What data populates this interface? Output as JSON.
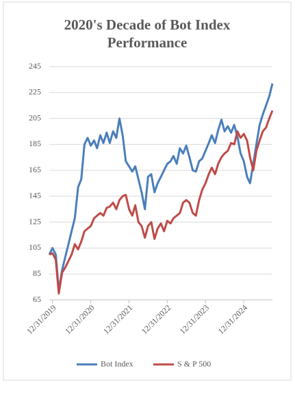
{
  "chart_data": {
    "type": "line",
    "title": "2020's Decade of Bot Index Performance",
    "x": [
      "2019-12",
      "2020-01",
      "2020-02",
      "2020-03",
      "2020-04",
      "2020-05",
      "2020-06",
      "2020-07",
      "2020-08",
      "2020-09",
      "2020-10",
      "2020-11",
      "2020-12",
      "2021-01",
      "2021-02",
      "2021-03",
      "2021-04",
      "2021-05",
      "2021-06",
      "2021-07",
      "2021-08",
      "2021-09",
      "2021-10",
      "2021-11",
      "2021-12",
      "2022-01",
      "2022-02",
      "2022-03",
      "2022-04",
      "2022-05",
      "2022-06",
      "2022-07",
      "2022-08",
      "2022-09",
      "2022-10",
      "2022-11",
      "2022-12",
      "2023-01",
      "2023-02",
      "2023-03",
      "2023-04",
      "2023-05",
      "2023-06",
      "2023-07",
      "2023-08",
      "2023-09",
      "2023-10",
      "2023-11",
      "2023-12",
      "2024-01",
      "2024-02",
      "2024-03",
      "2024-04",
      "2024-05",
      "2024-06",
      "2024-07",
      "2024-08",
      "2024-09",
      "2024-10",
      "2024-11",
      "2024-12",
      "2025-01",
      "2025-02",
      "2025-03",
      "2025-04",
      "2025-05",
      "2025-06",
      "2025-07",
      "2025-08",
      "2025-09",
      "2025-10"
    ],
    "series": [
      {
        "name": "Bot Index",
        "color": "#4a7ebb",
        "values": [
          100,
          105,
          100,
          72,
          88,
          98,
          108,
          118,
          128,
          152,
          158,
          185,
          190,
          184,
          188,
          182,
          192,
          186,
          194,
          186,
          195,
          190,
          205,
          192,
          172,
          168,
          164,
          168,
          158,
          148,
          135,
          160,
          162,
          148,
          155,
          160,
          165,
          170,
          172,
          176,
          170,
          182,
          178,
          184,
          175,
          165,
          164,
          172,
          174,
          180,
          186,
          192,
          186,
          196,
          204,
          195,
          199,
          194,
          200,
          191,
          178,
          172,
          160,
          155,
          170,
          185,
          200,
          208,
          215,
          222,
          232
        ]
      },
      {
        "name": "S & P 500",
        "color": "#be4b48",
        "values": [
          100,
          101,
          96,
          70,
          86,
          90,
          95,
          100,
          108,
          104,
          110,
          118,
          120,
          122,
          128,
          130,
          132,
          130,
          136,
          137,
          140,
          135,
          142,
          145,
          146,
          135,
          130,
          138,
          125,
          122,
          113,
          122,
          125,
          112,
          120,
          124,
          118,
          126,
          124,
          128,
          130,
          132,
          140,
          142,
          140,
          132,
          130,
          142,
          150,
          155,
          162,
          167,
          162,
          170,
          175,
          178,
          180,
          186,
          185,
          195,
          190,
          193,
          188,
          175,
          165,
          180,
          188,
          195,
          198,
          205,
          211
        ]
      }
    ],
    "xlim": [
      "2019-12",
      "2025-10"
    ],
    "xticks": [
      {
        "value": "2019-12-31",
        "label": "12/31/2019"
      },
      {
        "value": "2020-12-31",
        "label": "12/31/2020"
      },
      {
        "value": "2021-12-31",
        "label": "12/31/2021"
      },
      {
        "value": "2022-12-31",
        "label": "12/31/2022"
      },
      {
        "value": "2023-12-31",
        "label": "12/31/2023"
      },
      {
        "value": "2024-12-31",
        "label": "12/31/2024"
      }
    ],
    "ylim": [
      65,
      245
    ],
    "yticks": [
      65,
      85,
      105,
      125,
      145,
      165,
      185,
      205,
      225,
      245
    ],
    "grid": true,
    "legend": "bottom"
  }
}
